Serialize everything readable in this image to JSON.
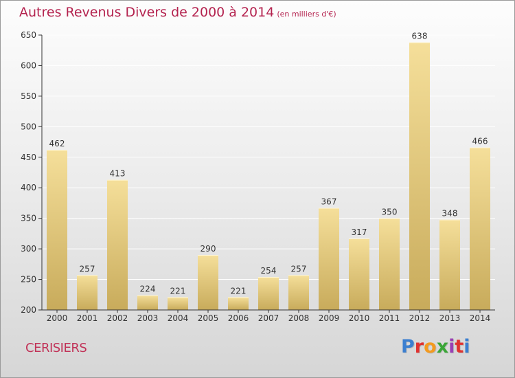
{
  "title": "Autres Revenus Divers de 2000 à 2014",
  "subtitle": "(en milliers d'€)",
  "commune": "CERISIERS",
  "brand": "Proxiti",
  "brand_colors": [
    "#3b7fd0",
    "#e0322f",
    "#f39a1f",
    "#3aa637",
    "#9a3fb4",
    "#e0322f",
    "#3b7fd0"
  ],
  "colors": {
    "title": "#b4234f",
    "bar_top": "#f5df9a",
    "bar_bottom": "#c8ab5b",
    "grid": "#ffffff",
    "axis": "#333333"
  },
  "chart_data": {
    "type": "bar",
    "title": "Autres Revenus Divers de 2000 à 2014",
    "subtitle": "(en milliers d'€)",
    "categories": [
      "2000",
      "2001",
      "2002",
      "2003",
      "2004",
      "2005",
      "2006",
      "2007",
      "2008",
      "2009",
      "2010",
      "2011",
      "2012",
      "2013",
      "2014"
    ],
    "values": [
      462,
      257,
      413,
      224,
      221,
      290,
      221,
      254,
      257,
      367,
      317,
      350,
      638,
      348,
      466
    ],
    "ylim": [
      200,
      650
    ],
    "yticks": [
      200,
      250,
      300,
      350,
      400,
      450,
      500,
      550,
      600,
      650
    ],
    "grid": true,
    "data_labels": true
  }
}
